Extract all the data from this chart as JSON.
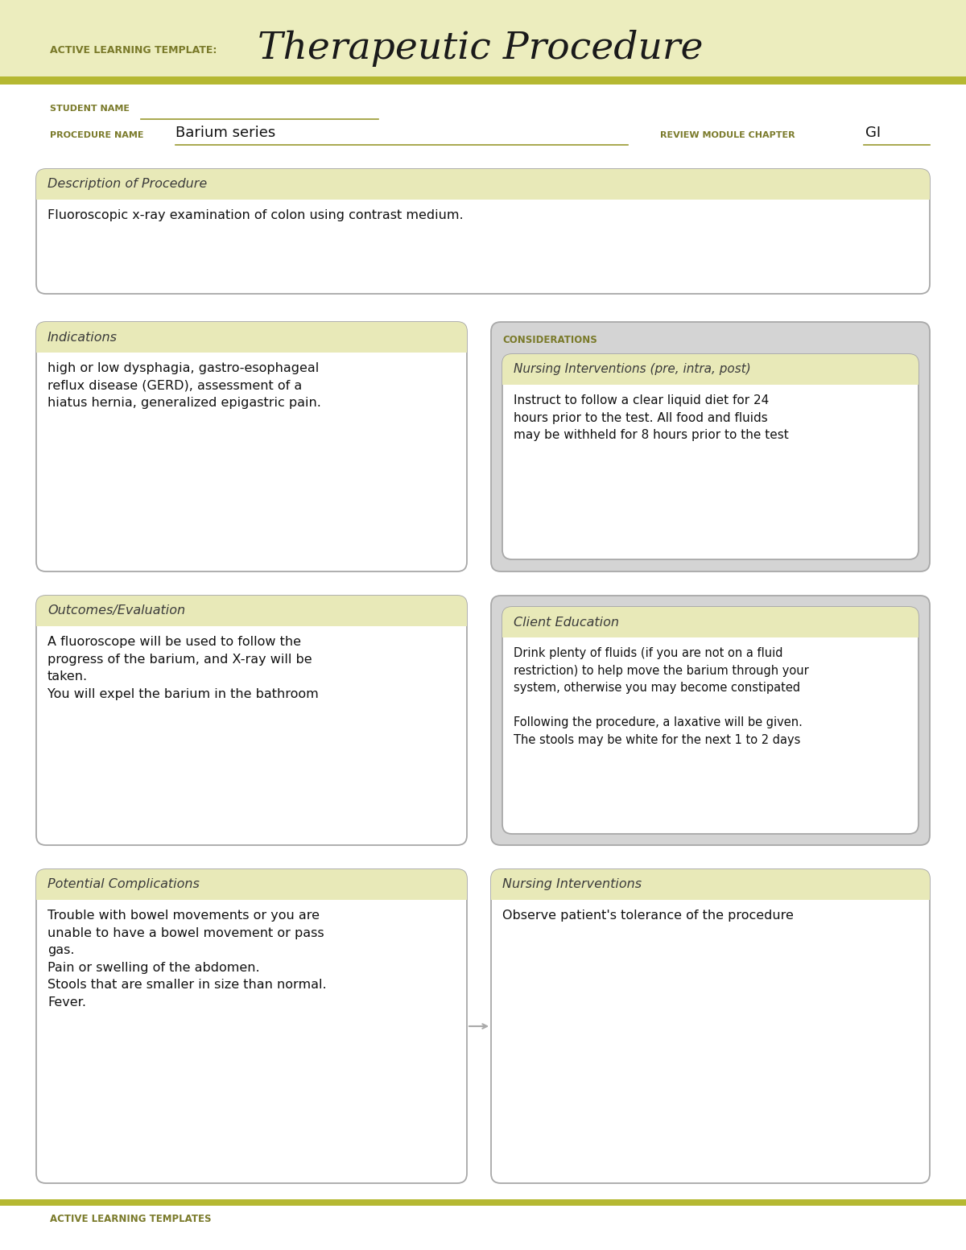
{
  "page_bg": "#ffffff",
  "header_bg": "#ecedbe",
  "header_stripe_color": "#b5b832",
  "header_label": "ACTIVE LEARNING TEMPLATE:",
  "header_title": "Therapeutic Procedure",
  "header_label_color": "#7a7a2a",
  "header_title_color": "#1a1a1a",
  "student_name_label": "STUDENT NAME",
  "procedure_name_label": "PROCEDURE NAME",
  "procedure_name_value": "Barium series",
  "review_module_label": "REVIEW MODULE CHAPTER",
  "review_module_value": "GI",
  "label_color": "#7a7a2a",
  "underline_color": "#9a9a30",
  "box_border_color": "#a8a8a8",
  "box_header_bg": "#e8e9b8",
  "box_bg": "#ffffff",
  "considerations_bg": "#d4d4d4",
  "section_title_color": "#3a3a3a",
  "considerations_title_color": "#7a7a2a",
  "body_text_color": "#111111",
  "footer_text": "ACTIVE LEARNING TEMPLATES",
  "footer_color": "#7a7a2a",
  "desc_title": "Description of Procedure",
  "desc_body": "Fluoroscopic x-ray examination of colon using contrast medium.",
  "indications_title": "Indications",
  "indications_body": "high or low dysphagia, gastro-esophageal\nreflux disease (GERD), assessment of a\nhiatus hernia, generalized epigastric pain.",
  "considerations_label": "CONSIDERATIONS",
  "nursing_interventions_title": "Nursing Interventions (pre, intra, post)",
  "nursing_interventions_body": "Instruct to follow a clear liquid diet for 24\nhours prior to the test. All food and fluids\nmay be withheld for 8 hours prior to the test",
  "outcomes_title": "Outcomes/Evaluation",
  "outcomes_body": "A fluoroscope will be used to follow the\nprogress of the barium, and X-ray will be\ntaken.\nYou will expel the barium in the bathroom",
  "client_education_title": "Client Education",
  "client_education_body": "Drink plenty of fluids (if you are not on a fluid\nrestriction) to help move the barium through your\nsystem, otherwise you may become constipated\n\nFollowing the procedure, a laxative will be given.\nThe stools may be white for the next 1 to 2 days",
  "complications_title": "Potential Complications",
  "complications_body": "Trouble with bowel movements or you are\nunable to have a bowel movement or pass\ngas.\nPain or swelling of the abdomen.\nStools that are smaller in size than normal.\nFever.",
  "nursing_interventions2_title": "Nursing Interventions",
  "nursing_interventions2_body": "Observe patient's tolerance of the procedure"
}
